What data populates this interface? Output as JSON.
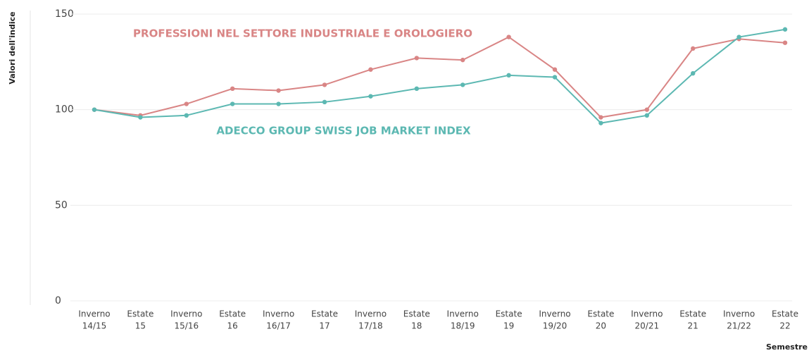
{
  "chart_data": {
    "type": "line",
    "y_label": "Valori dell'indice",
    "x_label": "Semestre",
    "categories": [
      [
        "Inverno",
        "14/15"
      ],
      [
        "Estate",
        "15"
      ],
      [
        "Inverno",
        "15/16"
      ],
      [
        "Estate",
        "16"
      ],
      [
        "Inverno",
        "16/17"
      ],
      [
        "Estate",
        "17"
      ],
      [
        "Inverno",
        "17/18"
      ],
      [
        "Estate",
        "18"
      ],
      [
        "Inverno",
        "18/19"
      ],
      [
        "Estate",
        "19"
      ],
      [
        "Inverno",
        "19/20"
      ],
      [
        "Estate",
        "20"
      ],
      [
        "Inverno",
        "20/21"
      ],
      [
        "Estate",
        "21"
      ],
      [
        "Inverno",
        "21/22"
      ],
      [
        "Estate",
        "22"
      ]
    ],
    "series": [
      {
        "name": "PROFESSIONI NEL SETTORE INDUSTRIALE E OROLOGIERO",
        "color": "#d98585",
        "values": [
          100,
          97,
          103,
          111,
          110,
          113,
          121,
          127,
          126,
          138,
          121,
          96,
          100,
          132,
          137,
          135
        ]
      },
      {
        "name": "ADECCO GROUP SWISS JOB MARKET INDEX",
        "color": "#5cb8b2",
        "values": [
          100,
          96,
          97,
          103,
          103,
          104,
          107,
          111,
          113,
          118,
          117,
          93,
          97,
          119,
          138,
          142
        ]
      }
    ],
    "ylim": [
      0,
      150
    ],
    "yticks": [
      0,
      50,
      100,
      150
    ],
    "grid": true
  }
}
